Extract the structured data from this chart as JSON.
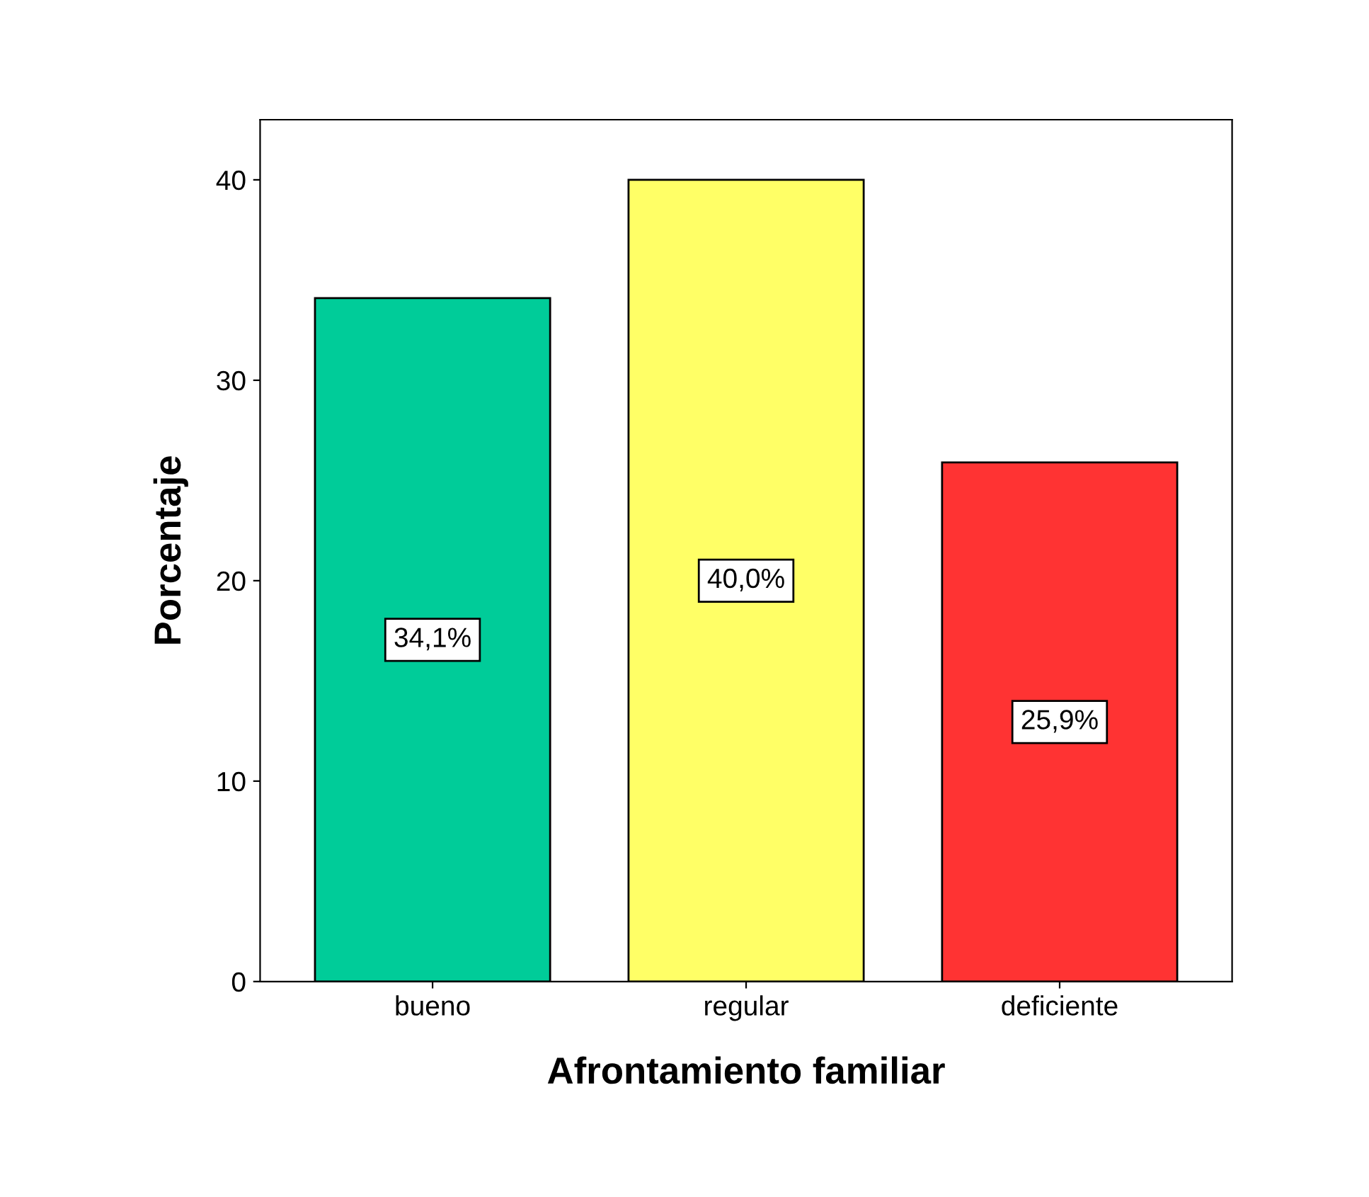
{
  "chart_data": {
    "type": "bar",
    "xlabel": "Afrontamiento familiar",
    "ylabel": "Porcentaje",
    "categories": [
      "bueno",
      "regular",
      "deficiente"
    ],
    "values": [
      34.1,
      40.0,
      25.9
    ],
    "value_labels": [
      "34,1%",
      "40,0%",
      "25,9%"
    ],
    "colors": [
      "#00cc99",
      "#ffff66",
      "#ff3333"
    ],
    "ylim": [
      0,
      43
    ],
    "yticks": [
      0,
      10,
      20,
      30,
      40
    ],
    "grid": false,
    "legend": false
  }
}
